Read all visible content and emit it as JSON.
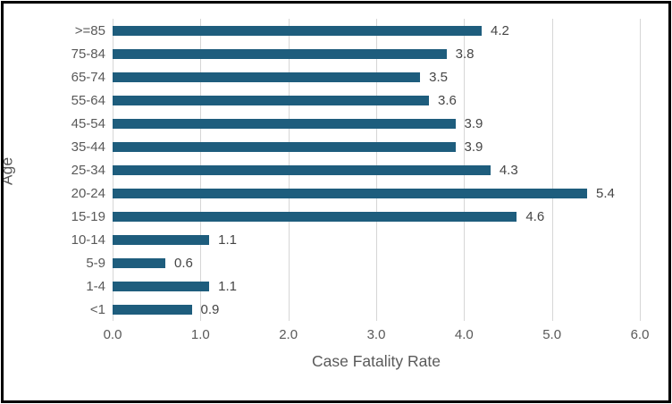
{
  "chart_data": {
    "type": "bar",
    "orientation": "horizontal",
    "title": "",
    "xlabel": "Case Fatality Rate",
    "ylabel": "Age",
    "categories": [
      ">=85",
      "75-84",
      "65-74",
      "55-64",
      "45-54",
      "35-44",
      "25-34",
      "20-24",
      "15-19",
      "10-14",
      "5-9",
      "1-4",
      "<1"
    ],
    "values": [
      4.2,
      3.8,
      3.5,
      3.6,
      3.9,
      3.9,
      4.3,
      5.4,
      4.6,
      1.1,
      0.6,
      1.1,
      0.9
    ],
    "data_labels": [
      "4.2",
      "3.8",
      "3.5",
      "3.6",
      "3.9",
      "3.9",
      "4.3",
      "5.4",
      "4.6",
      "1.1",
      "0.6",
      "1.1",
      "0.9"
    ],
    "xlim": [
      0,
      6
    ],
    "x_ticks": [
      "0.0",
      "1.0",
      "2.0",
      "3.0",
      "4.0",
      "5.0",
      "6.0"
    ],
    "x_tick_values": [
      0,
      1,
      2,
      3,
      4,
      5,
      6
    ],
    "grid": "vertical",
    "legend": "none",
    "colors": {
      "bar": "#1e5d7d",
      "gridline": "#d6d6d6",
      "axis_text": "#595959",
      "value_text": "#454545",
      "frame_border": "#000000",
      "background": "#ffffff"
    }
  }
}
